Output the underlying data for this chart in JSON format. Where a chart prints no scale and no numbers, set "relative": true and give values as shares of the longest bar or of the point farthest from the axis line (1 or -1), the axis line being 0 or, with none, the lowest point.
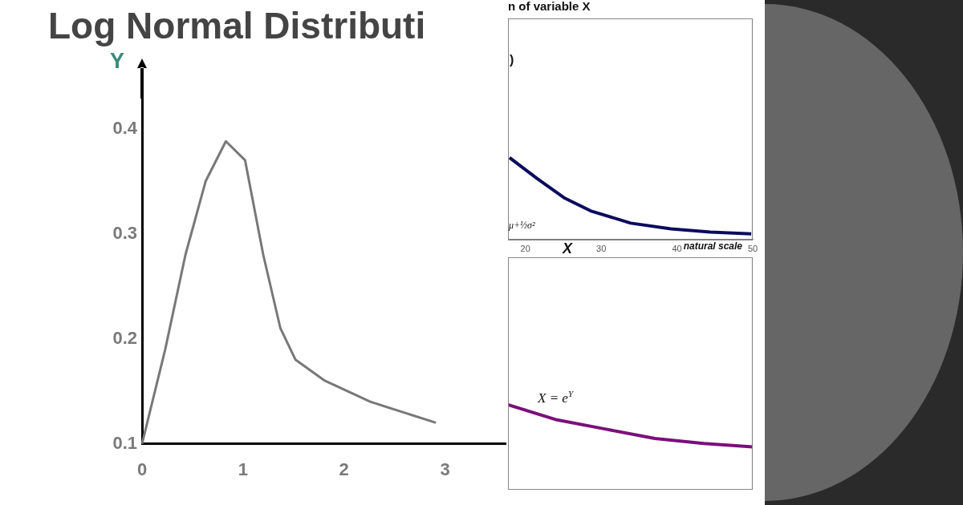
{
  "chart_data": [
    {
      "type": "line",
      "title": "Log Normal Distributi",
      "ylabel": "Y",
      "x": [
        0,
        0.23,
        0.43,
        0.63,
        0.83,
        1.02,
        1.2,
        1.37,
        1.52,
        1.81,
        2.26,
        2.91
      ],
      "values": [
        0.1,
        0.19,
        0.28,
        0.35,
        0.388,
        0.37,
        0.28,
        0.21,
        0.18,
        0.16,
        0.14,
        0.12
      ],
      "color": "#787878",
      "xlim": [
        0,
        3.6
      ],
      "xticks": [
        0,
        1,
        2,
        3
      ],
      "ylim": [
        0.1,
        0.43
      ],
      "yticks": [
        0.1,
        0.2,
        0.3,
        0.4
      ]
    },
    {
      "type": "line",
      "title": "n of variable X",
      "xlabel": "X",
      "annotations": [
        ")",
        "μ+½σ²",
        "natural scale"
      ],
      "x": [
        17.9,
        21.6,
        25.1,
        28.6,
        33.9,
        39.2,
        44.4,
        49.8
      ],
      "values": [
        1,
        0.74,
        0.51,
        0.35,
        0.2,
        0.13,
        0.09,
        0.07
      ],
      "color": "#0b0b5e",
      "relative": true,
      "xlim": [
        17.7,
        50
      ],
      "xticks": [
        20,
        30,
        40,
        50
      ],
      "tick_labels": "x"
    },
    {
      "type": "line",
      "annotations": [
        "X = e$^{Y}$"
      ],
      "categories": [
        null,
        null,
        null,
        null,
        null,
        null
      ],
      "values": [
        1,
        0.82,
        0.71,
        0.6,
        0.54,
        0.5
      ],
      "color": "#7b0f7b",
      "relative": true,
      "tick_labels": false
    }
  ]
}
